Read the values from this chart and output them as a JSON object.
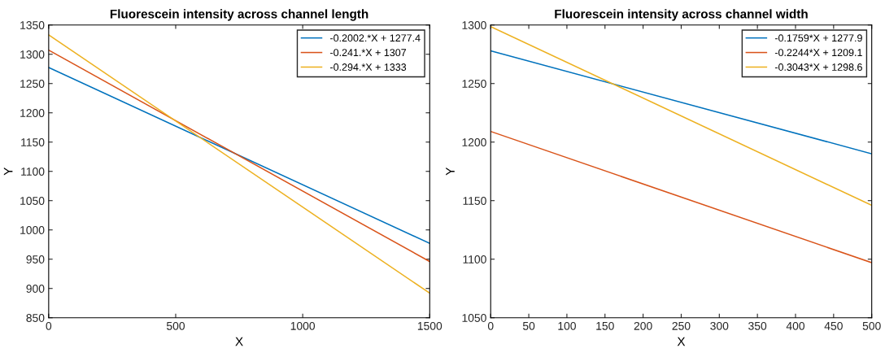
{
  "chart_data": [
    {
      "type": "line",
      "title": "Fluorescein intensity across channel length",
      "xlabel": "X",
      "ylabel": "Y",
      "xlim": [
        0,
        1500
      ],
      "xticks": [
        0,
        500,
        1000,
        1500
      ],
      "ylim": [
        850,
        1350
      ],
      "yticks": [
        850,
        900,
        950,
        1000,
        1050,
        1100,
        1150,
        1200,
        1250,
        1300,
        1350
      ],
      "legend": "top right",
      "marker": "none",
      "line_style": "solid",
      "series": [
        {
          "name": "-0.2002.*X + 1277.4",
          "color": "#0072bd",
          "x": [
            0,
            1500
          ],
          "values": [
            1277.4,
            977
          ]
        },
        {
          "name": "-0.241.*X + 1307",
          "color": "#d95319",
          "x": [
            0,
            1500
          ],
          "values": [
            1307,
            946
          ]
        },
        {
          "name": "-0.294.*X + 1333",
          "color": "#edb120",
          "x": [
            0,
            1500
          ],
          "values": [
            1333,
            892
          ]
        }
      ]
    },
    {
      "type": "line",
      "title": "Fluorescein intensity across channel width",
      "xlabel": "X",
      "ylabel": "Y",
      "xlim": [
        0,
        500
      ],
      "xticks": [
        0,
        50,
        100,
        150,
        200,
        250,
        300,
        350,
        400,
        450,
        500
      ],
      "ylim": [
        1050,
        1300
      ],
      "yticks": [
        1050,
        1100,
        1150,
        1200,
        1250,
        1300
      ],
      "legend": "top right",
      "marker": "none",
      "line_style": "solid",
      "series": [
        {
          "name": "-0.1759*X + 1277.9",
          "color": "#0072bd",
          "x": [
            0,
            500
          ],
          "values": [
            1277.9,
            1190
          ]
        },
        {
          "name": "-0.2244*X + 1209.1",
          "color": "#d95319",
          "x": [
            0,
            500
          ],
          "values": [
            1209.1,
            1097
          ]
        },
        {
          "name": "-0.3043*X + 1298.6",
          "color": "#edb120",
          "x": [
            0,
            500
          ],
          "values": [
            1298.6,
            1146
          ]
        }
      ]
    }
  ]
}
